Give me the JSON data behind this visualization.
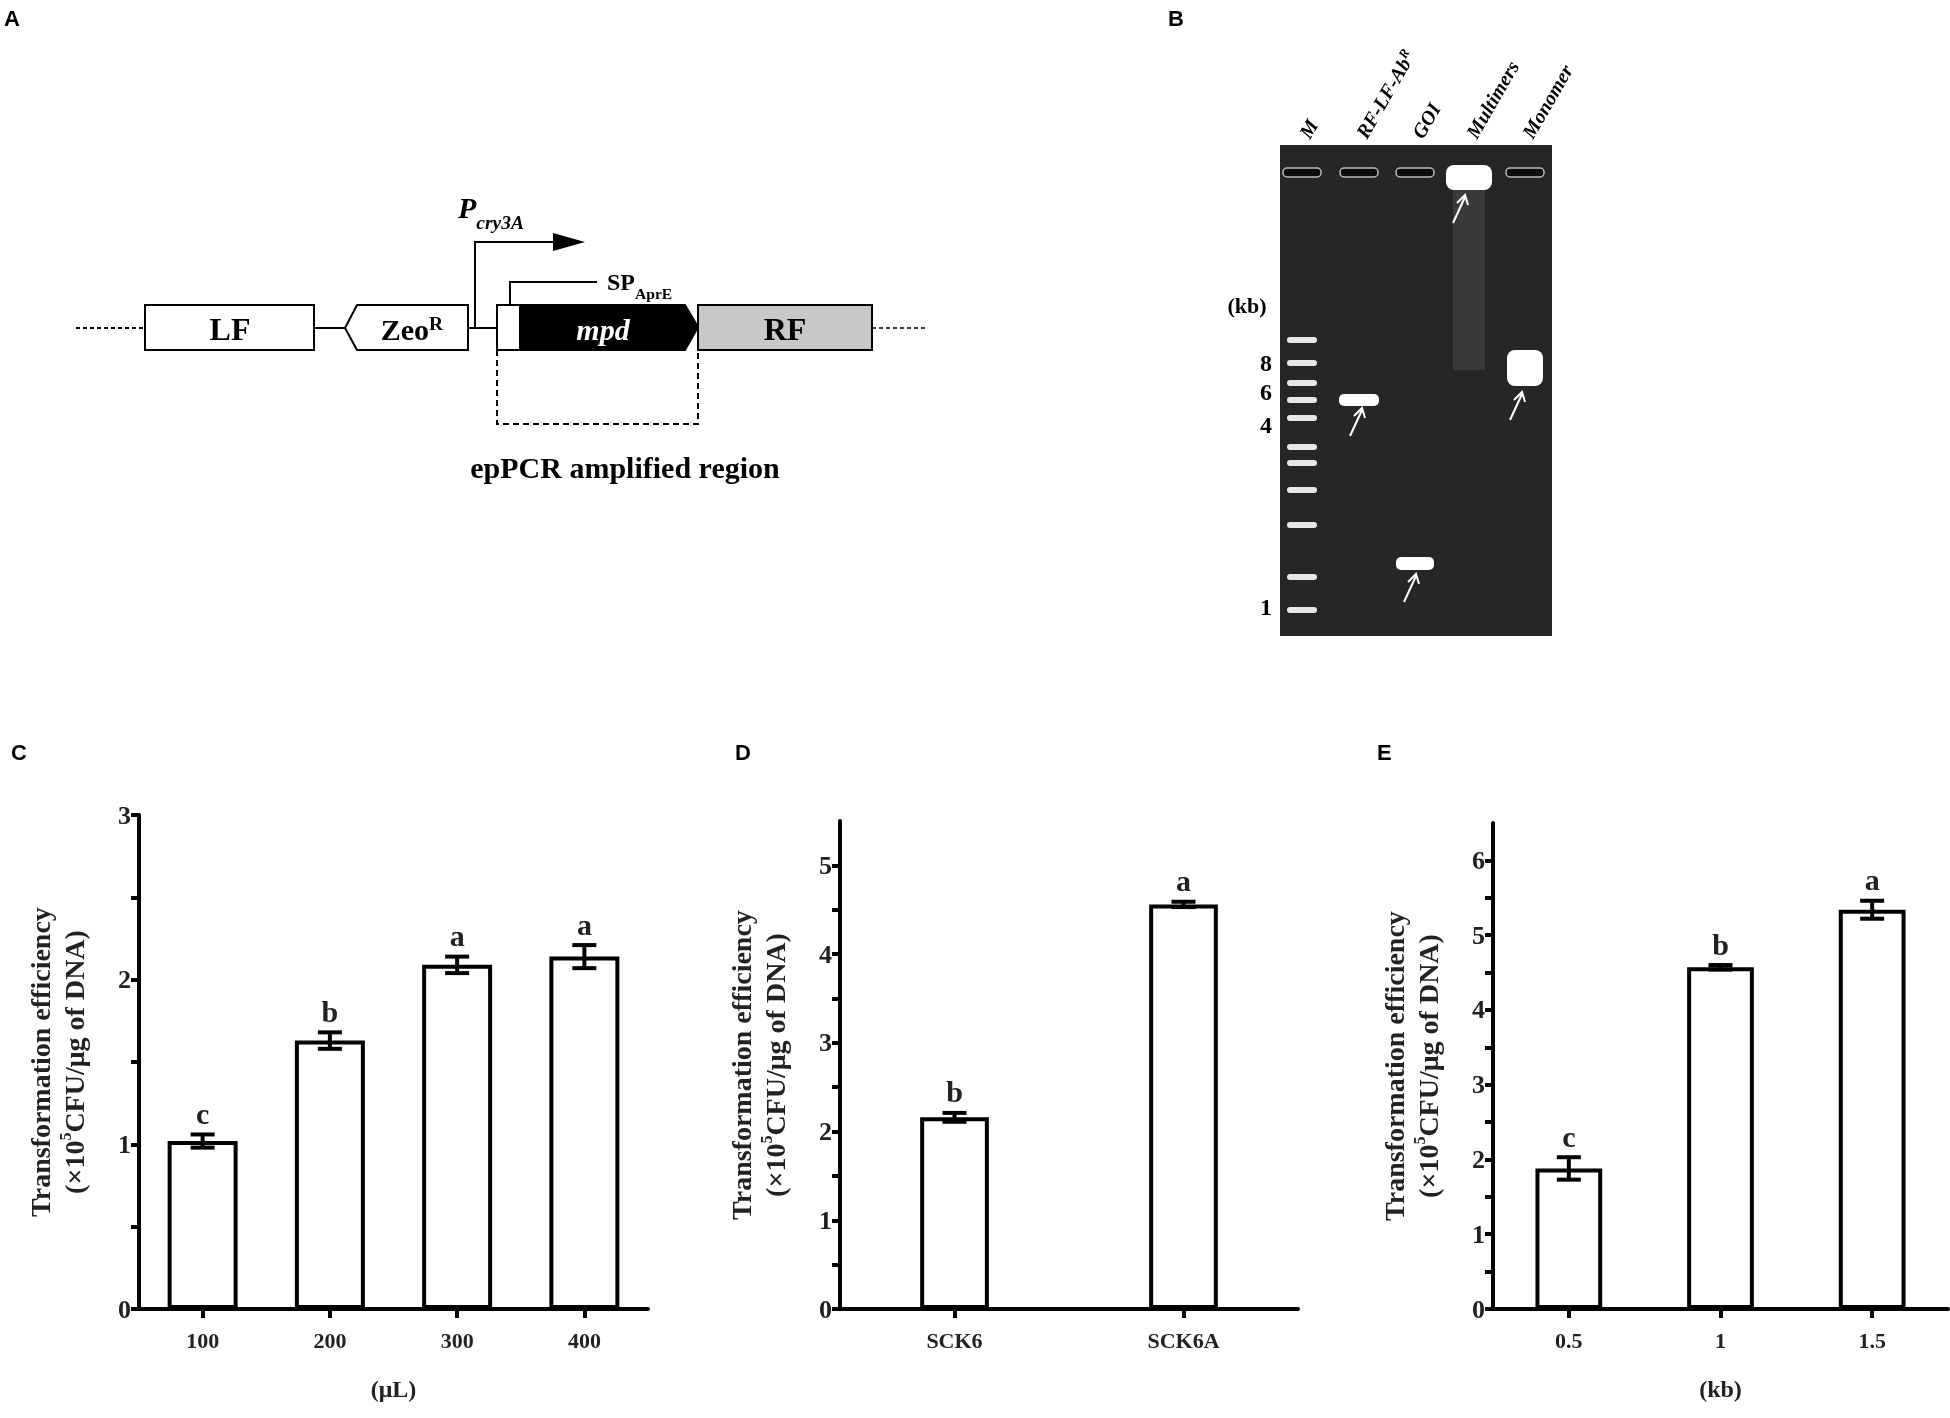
{
  "chart_data": [
    {
      "type": "other",
      "title": "A",
      "annotations": [
        "LF",
        "Zeo$^{R}$",
        "P$_{cry3A}$",
        "SP$_{AprE}$",
        "mpd",
        "RF",
        "epPCR amplified region"
      ]
    },
    {
      "type": "other",
      "title": "B",
      "annotations": [
        "M",
        "RF-LF-Ab$^{R}$",
        "GOI",
        "Multimers",
        "Monomer",
        "(kb)",
        "8",
        "6",
        "4",
        "1"
      ]
    },
    {
      "type": "bar",
      "title": "C",
      "categories": [
        "100",
        "200",
        "300",
        "400"
      ],
      "values": [
        1.02,
        1.63,
        2.09,
        2.14
      ],
      "errors": [
        0.04,
        0.05,
        0.05,
        0.07
      ],
      "color": "#ffffff",
      "xlabel": "(μL)",
      "ylabel": "Transformation efficiency\n(×10$^{5}$CFU/μg of DNA)",
      "ylim": [
        0,
        3
      ],
      "yticks": [
        0,
        {
          "value": 0.5,
          "label": null
        },
        1,
        {
          "value": 1.5,
          "label": null
        },
        2,
        {
          "value": 2.5,
          "label": null
        },
        3
      ],
      "annotations": [
        {
          "text": "c",
          "x": "100",
          "y": 1.06
        },
        {
          "text": "b",
          "x": "200",
          "y": 1.68
        },
        {
          "text": "a",
          "x": "300",
          "y": 2.14
        },
        {
          "text": "a",
          "x": "400",
          "y": 2.21
        }
      ]
    },
    {
      "type": "bar",
      "title": "D",
      "categories": [
        "SCK6",
        "SCK6A"
      ],
      "values": [
        2.16,
        4.56
      ],
      "errors": [
        0.05,
        0.03
      ],
      "color": "#ffffff",
      "ylabel": "Transformation efficiency\n(×10$^{5}$CFU/μg of DNA)",
      "ylim": [
        0,
        5.5
      ],
      "yticks": [
        0,
        {
          "value": 0.5,
          "label": null
        },
        1,
        {
          "value": 1.5,
          "label": null
        },
        2,
        {
          "value": 2.5,
          "label": null
        },
        3,
        {
          "value": 3.5,
          "label": null
        },
        4,
        {
          "value": 4.5,
          "label": null
        },
        5
      ],
      "annotations": [
        {
          "text": "b",
          "x": "SCK6",
          "y": 2.21
        },
        {
          "text": "a",
          "x": "SCK6A",
          "y": 4.59
        }
      ]
    },
    {
      "type": "bar",
      "title": "E",
      "categories": [
        "0.5",
        "1",
        "1.5"
      ],
      "values": [
        1.88,
        4.57,
        5.34
      ],
      "errors": [
        0.15,
        0.03,
        0.12
      ],
      "color": "#ffffff",
      "xlabel": "(kb)",
      "ylabel": "Transformation efficiency\n(×10$^{5}$CFU/μg of DNA)",
      "ylim": [
        0,
        6.5
      ],
      "yticks": [
        0,
        {
          "value": 0.5,
          "label": null
        },
        1,
        {
          "value": 1.5,
          "label": null
        },
        2,
        {
          "value": 2.5,
          "label": null
        },
        3,
        {
          "value": 3.5,
          "label": null
        },
        4,
        {
          "value": 4.5,
          "label": null
        },
        5,
        {
          "value": 5.5,
          "label": null
        },
        6
      ],
      "annotations": [
        {
          "text": "c",
          "x": "0.5",
          "y": 2.03
        },
        {
          "text": "b",
          "x": "1",
          "y": 4.6
        },
        {
          "text": "a",
          "x": "1.5",
          "y": 5.46
        }
      ]
    }
  ]
}
